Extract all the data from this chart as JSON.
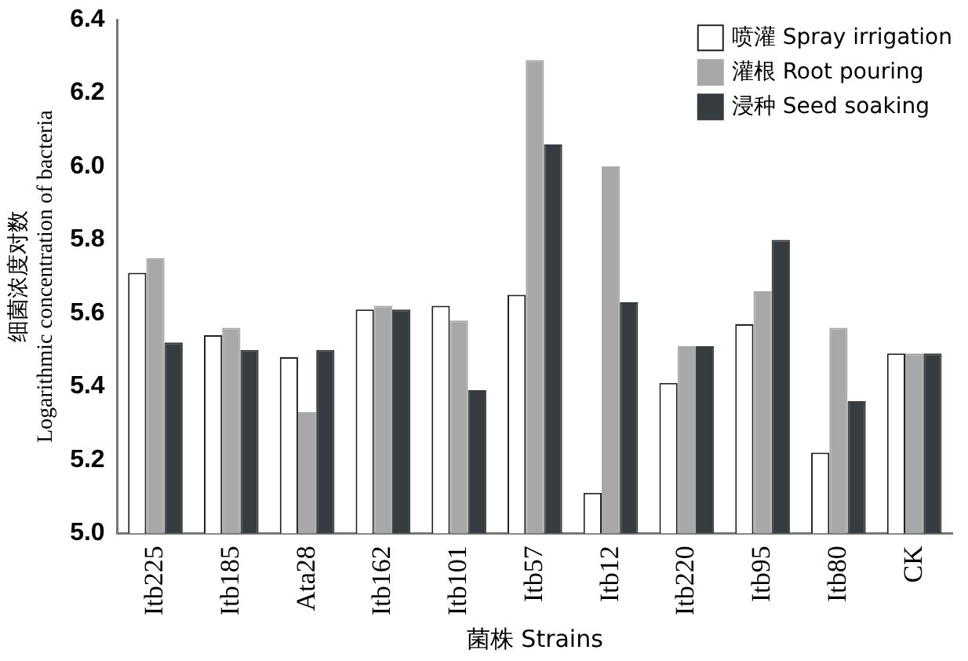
{
  "chart_data": {
    "type": "bar",
    "xlabel": "菌株 Strains",
    "ylabel": "细菌浓度对数\nLogarithmic concentration of bacteria",
    "categories": [
      "Itb225",
      "Itb185",
      "Ata28",
      "Itb162",
      "Itb101",
      "Itb57",
      "Itb12",
      "Itb220",
      "Itb95",
      "Itb80",
      "CK"
    ],
    "series": [
      {
        "name": "喷灌 Spray irrigation",
        "color": "#ffffff",
        "values": [
          5.71,
          5.54,
          5.48,
          5.61,
          5.62,
          5.65,
          5.11,
          5.41,
          5.57,
          5.22,
          5.49
        ]
      },
      {
        "name": "灌根 Root pouring",
        "color": "#a8a8a8",
        "values": [
          5.75,
          5.56,
          5.33,
          5.62,
          5.58,
          6.29,
          6.0,
          5.51,
          5.66,
          5.56,
          5.49
        ]
      },
      {
        "name": "浸种 Seed soaking",
        "color": "#363c3f",
        "values": [
          5.52,
          5.5,
          5.5,
          5.61,
          5.39,
          6.06,
          5.63,
          5.51,
          5.8,
          5.36,
          5.49
        ]
      }
    ],
    "ylim": [
      5.0,
      6.4
    ],
    "yticks": [
      {
        "value": 5.0,
        "label": "5.0"
      },
      {
        "value": 5.2,
        "label": "5.2"
      },
      {
        "value": 5.4,
        "label": "5.4"
      },
      {
        "value": 5.6,
        "label": "5.6"
      },
      {
        "value": 5.8,
        "label": "5.8"
      },
      {
        "value": 6.0,
        "label": "6.0"
      },
      {
        "value": 6.2,
        "label": "6.2"
      },
      {
        "value": 6.4,
        "label": "6.4"
      }
    ],
    "grid": false,
    "legend": "top right"
  }
}
